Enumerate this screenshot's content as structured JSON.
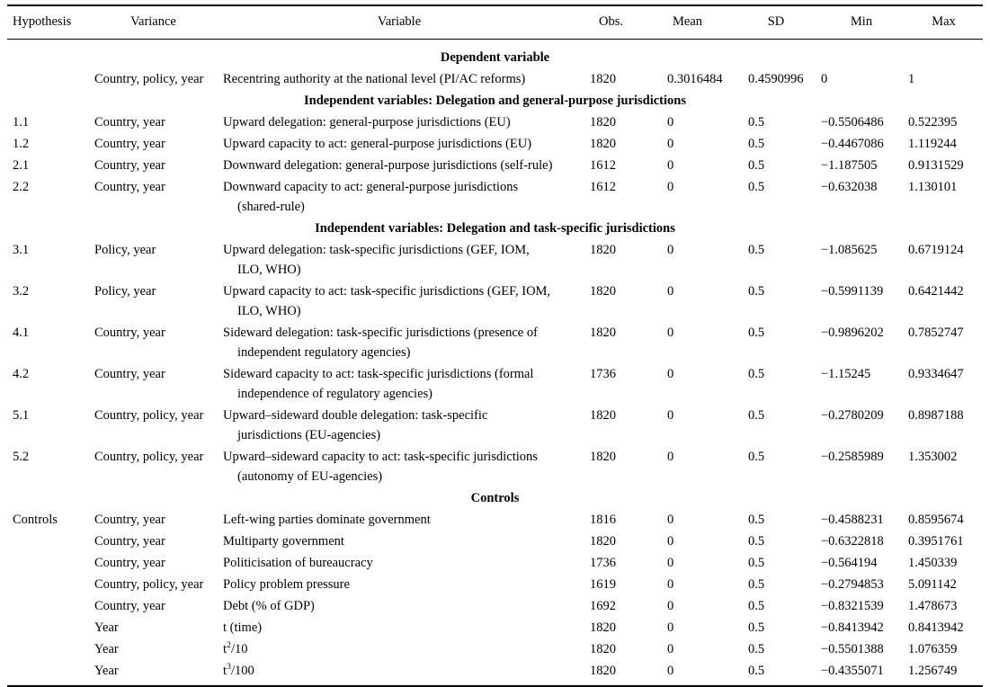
{
  "table": {
    "columns": [
      {
        "key": "hypothesis",
        "label": "Hypothesis"
      },
      {
        "key": "variance",
        "label": "Variance"
      },
      {
        "key": "variable",
        "label": "Variable"
      },
      {
        "key": "obs",
        "label": "Obs."
      },
      {
        "key": "mean",
        "label": "Mean"
      },
      {
        "key": "sd",
        "label": "SD"
      },
      {
        "key": "min",
        "label": "Min"
      },
      {
        "key": "max",
        "label": "Max"
      }
    ],
    "sections": [
      {
        "title": "Dependent variable",
        "rows": [
          {
            "hypothesis": "",
            "variance": "Country, policy, year",
            "variable": "Recentring authority at the national level (PI/AC reforms)",
            "obs": "1820",
            "mean": "0.3016484",
            "sd": "0.4590996",
            "min": "0",
            "max": "1"
          }
        ]
      },
      {
        "title": "Independent variables: Delegation and general-purpose jurisdictions",
        "rows": [
          {
            "hypothesis": "1.1",
            "variance": "Country, year",
            "variable": "Upward delegation: general-purpose jurisdictions (EU)",
            "obs": "1820",
            "mean": "0",
            "sd": "0.5",
            "min": "−0.5506486",
            "max": "0.522395"
          },
          {
            "hypothesis": "1.2",
            "variance": "Country, year",
            "variable": "Upward capacity to act: general-purpose jurisdictions (EU)",
            "obs": "1820",
            "mean": "0",
            "sd": "0.5",
            "min": "−0.4467086",
            "max": "1.119244"
          },
          {
            "hypothesis": "2.1",
            "variance": "Country, year",
            "variable": "Downward delegation: general-purpose jurisdictions (self-rule)",
            "obs": "1612",
            "mean": "0",
            "sd": "0.5",
            "min": "−1.187505",
            "max": "0.9131529"
          },
          {
            "hypothesis": "2.2",
            "variance": "Country, year",
            "variable": [
              "Downward capacity to act: general-purpose jurisdictions",
              "(shared-rule)"
            ],
            "obs": "1612",
            "mean": "0",
            "sd": "0.5",
            "min": "−0.632038",
            "max": "1.130101"
          }
        ]
      },
      {
        "title": "Independent variables: Delegation and task-specific jurisdictions",
        "rows": [
          {
            "hypothesis": "3.1",
            "variance": "Policy, year",
            "variable": [
              "Upward delegation: task-specific jurisdictions (GEF, IOM,",
              "ILO, WHO)"
            ],
            "obs": "1820",
            "mean": "0",
            "sd": "0.5",
            "min": "−1.085625",
            "max": "0.6719124"
          },
          {
            "hypothesis": "3.2",
            "variance": "Policy, year",
            "variable": [
              "Upward capacity to act: task-specific jurisdictions (GEF, IOM,",
              "ILO, WHO)"
            ],
            "obs": "1820",
            "mean": "0",
            "sd": "0.5",
            "min": "−0.5991139",
            "max": "0.6421442"
          },
          {
            "hypothesis": "4.1",
            "variance": "Country, year",
            "variable": [
              "Sideward delegation: task-specific jurisdictions (presence of",
              "independent regulatory agencies)"
            ],
            "obs": "1820",
            "mean": "0",
            "sd": "0.5",
            "min": "−0.9896202",
            "max": "0.7852747"
          },
          {
            "hypothesis": "4.2",
            "variance": "Country, year",
            "variable": [
              "Sideward capacity to act: task-specific jurisdictions (formal",
              "independence of regulatory agencies)"
            ],
            "obs": "1736",
            "mean": "0",
            "sd": "0.5",
            "min": "−1.15245",
            "max": "0.9334647"
          },
          {
            "hypothesis": "5.1",
            "variance": "Country, policy, year",
            "variable": [
              "Upward–sideward double delegation: task-specific",
              "jurisdictions (EU-agencies)"
            ],
            "obs": "1820",
            "mean": "0",
            "sd": "0.5",
            "min": "−0.2780209",
            "max": "0.8987188"
          },
          {
            "hypothesis": "5.2",
            "variance": "Country, policy, year",
            "variable": [
              "Upward–sideward capacity to act: task-specific jurisdictions",
              "(autonomy of EU-agencies)"
            ],
            "obs": "1820",
            "mean": "0",
            "sd": "0.5",
            "min": "−0.2585989",
            "max": "1.353002"
          }
        ]
      },
      {
        "title": "Controls",
        "rows": [
          {
            "hypothesis": "Controls",
            "variance": "Country, year",
            "variable": "Left-wing parties dominate government",
            "obs": "1816",
            "mean": "0",
            "sd": "0.5",
            "min": "−0.4588231",
            "max": "0.8595674"
          },
          {
            "hypothesis": "",
            "variance": "Country, year",
            "variable": "Multiparty government",
            "obs": "1820",
            "mean": "0",
            "sd": "0.5",
            "min": "−0.6322818",
            "max": "0.3951761"
          },
          {
            "hypothesis": "",
            "variance": "Country, year",
            "variable": "Politicisation of bureaucracy",
            "obs": "1736",
            "mean": "0",
            "sd": "0.5",
            "min": "−0.564194",
            "max": "1.450339"
          },
          {
            "hypothesis": "",
            "variance": "Country, policy, year",
            "variable": "Policy problem pressure",
            "obs": "1619",
            "mean": "0",
            "sd": "0.5",
            "min": "−0.2794853",
            "max": "5.091142"
          },
          {
            "hypothesis": "",
            "variance": "Country, year",
            "variable": "Debt (% of GDP)",
            "obs": "1692",
            "mean": "0",
            "sd": "0.5",
            "min": "−0.8321539",
            "max": "1.478673"
          },
          {
            "hypothesis": "",
            "variance": "Year",
            "variable": "t (time)",
            "obs": "1820",
            "mean": "0",
            "sd": "0.5",
            "min": "−0.8413942",
            "max": "0.8413942"
          },
          {
            "hypothesis": "",
            "variance": "Year",
            "variable": [
              {
                "text": "t"
              },
              {
                "sup": "2"
              },
              {
                "text": "/10"
              }
            ],
            "obs": "1820",
            "mean": "0",
            "sd": "0.5",
            "min": "−0.5501388",
            "max": "1.076359"
          },
          {
            "hypothesis": "",
            "variance": "Year",
            "variable": [
              {
                "text": "t"
              },
              {
                "sup": "3"
              },
              {
                "text": "/100"
              }
            ],
            "obs": "1820",
            "mean": "0",
            "sd": "0.5",
            "min": "−0.4355071",
            "max": "1.256749"
          }
        ]
      }
    ],
    "text_color": "#000000",
    "rule_color": "#000000",
    "background_color": "#ffffff"
  }
}
